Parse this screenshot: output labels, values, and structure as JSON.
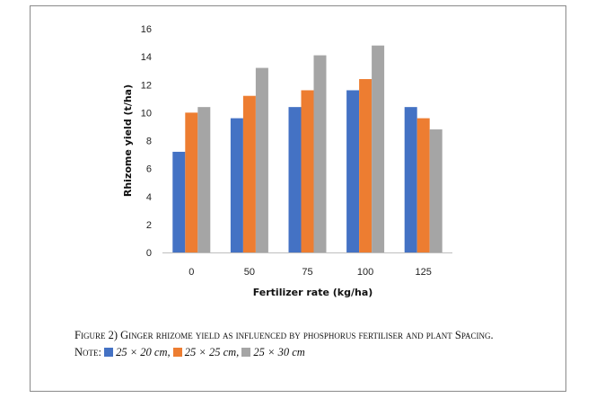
{
  "chart_data": {
    "type": "bar",
    "xlabel": "Fertilizer rate (kg/ha)",
    "ylabel": "Rhizome yield (t/ha)",
    "categories": [
      "0",
      "50",
      "75",
      "100",
      "125"
    ],
    "ylim": [
      0,
      16
    ],
    "yticks": [
      "0",
      "2",
      "4",
      "6",
      "8",
      "10",
      "12",
      "14",
      "16"
    ],
    "grid": false,
    "series": [
      {
        "name": "25 × 20 cm",
        "color": "#4472C4",
        "values": [
          7.2,
          9.6,
          10.4,
          11.6,
          10.4
        ]
      },
      {
        "name": "25 × 25 cm",
        "color": "#ED7D31",
        "values": [
          10.0,
          11.2,
          11.6,
          12.4,
          9.6
        ]
      },
      {
        "name": "25 × 30 cm",
        "color": "#A5A5A5",
        "values": [
          10.4,
          13.2,
          14.1,
          14.8,
          8.8
        ]
      }
    ]
  },
  "caption": {
    "figure_label": "Figure 2)",
    "text": "Ginger rhizome yield as influenced by phosphorus fertiliser and plant Spacing.",
    "note_label": "Note:"
  },
  "legend": {
    "items": [
      {
        "label": "25 × 20 cm,",
        "color": "#4472C4"
      },
      {
        "label": "25 × 25 cm,",
        "color": "#ED7D31"
      },
      {
        "label": "25 × 30 cm",
        "color": "#A5A5A5"
      }
    ]
  }
}
